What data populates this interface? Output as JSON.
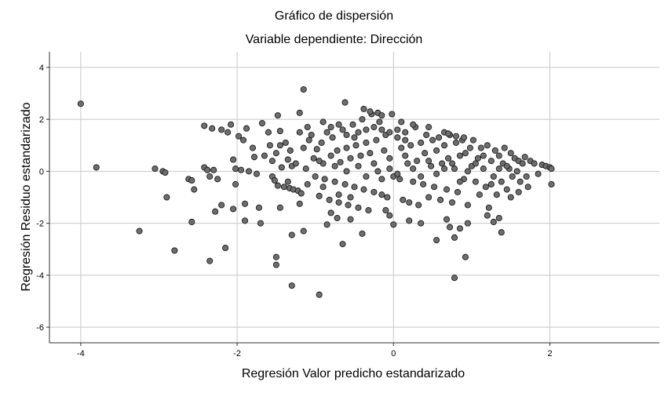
{
  "chart_data": {
    "type": "scatter",
    "title": "Gráfico de dispersión",
    "subtitle": "Variable dependiente: Dirección",
    "xlabel": "Regresión Valor predicho estandarizado",
    "ylabel": "Regresión Residuo estandarizado",
    "xlim": [
      -4.4,
      3.4
    ],
    "ylim": [
      -6.6,
      4.6
    ],
    "xticks": [
      -4,
      -2,
      0,
      2
    ],
    "yticks": [
      -6,
      -4,
      -2,
      0,
      2,
      4
    ],
    "xtick_labels": [
      "-4",
      "-2",
      "0",
      "2"
    ],
    "ytick_labels": [
      "-6",
      "-4",
      "-2",
      "0",
      "2",
      "4"
    ],
    "grid": true,
    "marker_fill": "#6e6e6e",
    "marker_edge": "#1a1a1a",
    "points": [
      [
        -4.0,
        2.6
      ],
      [
        -3.8,
        0.15
      ],
      [
        -3.25,
        -2.3
      ],
      [
        -3.05,
        0.1
      ],
      [
        -2.95,
        0.0
      ],
      [
        -2.92,
        -0.05
      ],
      [
        -2.9,
        -1.0
      ],
      [
        -2.8,
        -3.05
      ],
      [
        -2.62,
        -0.3
      ],
      [
        -2.58,
        -0.35
      ],
      [
        -2.58,
        -1.95
      ],
      [
        -2.55,
        -0.7
      ],
      [
        -2.42,
        1.75
      ],
      [
        -2.42,
        0.15
      ],
      [
        -2.38,
        0.05
      ],
      [
        -2.35,
        -0.2
      ],
      [
        -2.35,
        -3.45
      ],
      [
        -2.32,
        1.65
      ],
      [
        -2.3,
        0.05
      ],
      [
        -2.28,
        -1.55
      ],
      [
        -2.25,
        -0.3
      ],
      [
        -2.2,
        1.6
      ],
      [
        -2.2,
        -1.3
      ],
      [
        -2.15,
        -2.95
      ],
      [
        -2.12,
        1.5
      ],
      [
        -2.08,
        1.8
      ],
      [
        -2.05,
        0.45
      ],
      [
        -2.05,
        -1.45
      ],
      [
        -2.02,
        0.1
      ],
      [
        -2.02,
        -0.5
      ],
      [
        -1.98,
        1.35
      ],
      [
        -1.95,
        0.05
      ],
      [
        -1.92,
        1.2
      ],
      [
        -1.9,
        -1.25
      ],
      [
        -1.9,
        -1.9
      ],
      [
        -1.88,
        1.65
      ],
      [
        -1.85,
        0.0
      ],
      [
        -1.8,
        0.9
      ],
      [
        -1.78,
        0.55
      ],
      [
        -1.75,
        -0.1
      ],
      [
        -1.72,
        -1.4
      ],
      [
        -1.7,
        -2.0
      ],
      [
        -1.68,
        1.85
      ],
      [
        -1.65,
        0.6
      ],
      [
        -1.55,
        -0.2
      ],
      [
        -1.5,
        0.7
      ],
      [
        -1.48,
        -0.55
      ],
      [
        -1.45,
        1.0
      ],
      [
        -1.43,
        0.15
      ],
      [
        -1.4,
        -0.6
      ],
      [
        -1.38,
        1.1
      ],
      [
        -1.35,
        0.45
      ],
      [
        -1.33,
        -0.65
      ],
      [
        -1.3,
        0.2
      ],
      [
        -1.28,
        -0.7
      ],
      [
        -1.25,
        0.3
      ],
      [
        -1.22,
        -0.75
      ],
      [
        -1.2,
        1.5
      ],
      [
        -1.18,
        -0.85
      ],
      [
        -1.5,
        -3.3
      ],
      [
        -1.5,
        -3.6
      ],
      [
        -1.45,
        -1.4
      ],
      [
        -1.3,
        -2.45
      ],
      [
        -1.3,
        -4.4
      ],
      [
        -1.2,
        -1.25
      ],
      [
        -1.15,
        -2.3
      ],
      [
        -1.48,
        2.15
      ],
      [
        -1.45,
        1.55
      ],
      [
        -1.2,
        2.25
      ],
      [
        -1.15,
        3.15
      ],
      [
        -1.1,
        1.7
      ],
      [
        -1.05,
        1.4
      ],
      [
        -1.02,
        0.5
      ],
      [
        -1.0,
        -0.2
      ],
      [
        -0.98,
        0.85
      ],
      [
        -0.95,
        -0.95
      ],
      [
        -0.92,
        1.1
      ],
      [
        -0.9,
        0.3
      ],
      [
        -0.88,
        -0.3
      ],
      [
        -0.85,
        1.5
      ],
      [
        -0.82,
        -1.1
      ],
      [
        -0.8,
        0.6
      ],
      [
        -0.78,
        1.3
      ],
      [
        -0.75,
        -0.4
      ],
      [
        -0.72,
        0.8
      ],
      [
        -0.7,
        -1.2
      ],
      [
        -0.68,
        0.35
      ],
      [
        -0.65,
        1.6
      ],
      [
        -0.62,
        -0.5
      ],
      [
        -0.6,
        0.9
      ],
      [
        -0.58,
        -1.3
      ],
      [
        -0.55,
        0.5
      ],
      [
        -0.52,
        1.8
      ],
      [
        -0.5,
        -0.6
      ],
      [
        -0.48,
        1.0
      ],
      [
        -0.45,
        -1.4
      ],
      [
        -0.42,
        0.6
      ],
      [
        -0.4,
        2.0
      ],
      [
        -0.38,
        -0.7
      ],
      [
        -0.35,
        1.1
      ],
      [
        -0.32,
        -1.5
      ],
      [
        -0.3,
        0.7
      ],
      [
        -0.28,
        2.2
      ],
      [
        -0.25,
        -0.8
      ],
      [
        -0.22,
        1.2
      ],
      [
        -0.2,
        0.0
      ],
      [
        -0.18,
        1.9
      ],
      [
        -0.15,
        -0.9
      ],
      [
        -0.12,
        0.8
      ],
      [
        -0.1,
        1.4
      ],
      [
        -0.08,
        -1.0
      ],
      [
        -0.05,
        0.5
      ],
      [
        -0.02,
        2.2
      ],
      [
        0.0,
        -0.2
      ],
      [
        -0.95,
        -4.75
      ],
      [
        -0.85,
        -2.05
      ],
      [
        -0.8,
        -1.6
      ],
      [
        -0.72,
        -1.8
      ],
      [
        -0.65,
        -2.8
      ],
      [
        -0.62,
        2.65
      ],
      [
        -0.55,
        -1.85
      ],
      [
        -0.4,
        -2.4
      ],
      [
        -0.38,
        2.4
      ],
      [
        -0.3,
        2.3
      ],
      [
        -0.2,
        2.25
      ],
      [
        -0.15,
        2.15
      ],
      [
        -0.1,
        -1.5
      ],
      [
        -0.05,
        -1.7
      ],
      [
        0.0,
        -2.05
      ],
      [
        0.05,
        1.6
      ],
      [
        0.08,
        -0.3
      ],
      [
        0.1,
        0.9
      ],
      [
        0.12,
        -1.1
      ],
      [
        0.15,
        1.5
      ],
      [
        0.18,
        0.3
      ],
      [
        0.2,
        -1.2
      ],
      [
        0.22,
        1.0
      ],
      [
        0.25,
        -0.4
      ],
      [
        0.28,
        1.7
      ],
      [
        0.3,
        0.4
      ],
      [
        0.32,
        -1.3
      ],
      [
        0.35,
        1.1
      ],
      [
        0.38,
        -0.5
      ],
      [
        0.4,
        0.7
      ],
      [
        0.42,
        1.4
      ],
      [
        0.45,
        -1.0
      ],
      [
        0.48,
        0.2
      ],
      [
        0.5,
        1.2
      ],
      [
        0.52,
        -0.6
      ],
      [
        0.55,
        0.8
      ],
      [
        0.58,
        1.3
      ],
      [
        0.6,
        -1.1
      ],
      [
        0.62,
        0.3
      ],
      [
        0.65,
        1.0
      ],
      [
        0.68,
        -0.7
      ],
      [
        0.7,
        0.5
      ],
      [
        0.72,
        1.4
      ],
      [
        0.75,
        -1.2
      ],
      [
        0.78,
        0.1
      ],
      [
        0.8,
        1.1
      ],
      [
        0.82,
        -0.8
      ],
      [
        0.85,
        0.6
      ],
      [
        0.88,
        1.2
      ],
      [
        0.9,
        -0.3
      ],
      [
        0.92,
        0.7
      ],
      [
        0.95,
        -1.3
      ],
      [
        0.98,
        0.9
      ],
      [
        1.0,
        0.2
      ],
      [
        0.2,
        -1.9
      ],
      [
        0.35,
        -2.0
      ],
      [
        0.55,
        -2.65
      ],
      [
        0.68,
        -1.85
      ],
      [
        0.72,
        -2.15
      ],
      [
        0.78,
        -4.1
      ],
      [
        0.78,
        -2.55
      ],
      [
        0.85,
        -2.2
      ],
      [
        0.92,
        -3.3
      ],
      [
        0.95,
        -2.0
      ],
      [
        0.1,
        1.9
      ],
      [
        0.25,
        1.8
      ],
      [
        0.45,
        1.7
      ],
      [
        0.65,
        1.5
      ],
      [
        0.7,
        1.45
      ],
      [
        0.8,
        1.35
      ],
      [
        0.9,
        1.3
      ],
      [
        1.02,
        1.2
      ],
      [
        1.05,
        -0.4
      ],
      [
        1.08,
        0.5
      ],
      [
        1.1,
        -0.9
      ],
      [
        1.12,
        0.9
      ],
      [
        1.15,
        0.1
      ],
      [
        1.18,
        -0.6
      ],
      [
        1.2,
        1.0
      ],
      [
        1.22,
        -1.4
      ],
      [
        1.25,
        0.4
      ],
      [
        1.28,
        -0.2
      ],
      [
        1.3,
        0.8
      ],
      [
        1.32,
        -0.9
      ],
      [
        1.35,
        0.6
      ],
      [
        1.38,
        -0.4
      ],
      [
        1.4,
        0.3
      ],
      [
        1.42,
        0.9
      ],
      [
        1.45,
        -0.7
      ],
      [
        1.48,
        0.1
      ],
      [
        1.5,
        0.7
      ],
      [
        1.52,
        -0.2
      ],
      [
        1.55,
        0.5
      ],
      [
        1.58,
        0.0
      ],
      [
        1.6,
        0.4
      ],
      [
        1.62,
        -0.4
      ],
      [
        1.65,
        0.3
      ],
      [
        1.68,
        0.55
      ],
      [
        1.7,
        -0.2
      ],
      [
        1.75,
        0.4
      ],
      [
        1.8,
        0.3
      ],
      [
        1.85,
        -0.1
      ],
      [
        1.9,
        0.25
      ],
      [
        1.95,
        0.2
      ],
      [
        2.0,
        0.15
      ],
      [
        2.02,
        0.1
      ],
      [
        2.02,
        -0.5
      ],
      [
        1.2,
        -1.7
      ],
      [
        1.28,
        -1.95
      ],
      [
        1.35,
        -1.8
      ],
      [
        1.38,
        -2.35
      ],
      [
        1.5,
        -1.0
      ],
      [
        1.6,
        -0.8
      ],
      [
        1.72,
        -0.6
      ],
      [
        -1.6,
        1.5
      ],
      [
        -1.58,
        1.0
      ],
      [
        -1.55,
        0.4
      ],
      [
        -1.52,
        -0.35
      ],
      [
        -1.35,
        -0.4
      ],
      [
        -1.32,
        0.8
      ],
      [
        -1.15,
        0.9
      ],
      [
        -1.12,
        0.1
      ],
      [
        -1.1,
        -0.5
      ],
      [
        -1.08,
        1.2
      ],
      [
        -0.95,
        0.4
      ],
      [
        -0.9,
        -0.6
      ],
      [
        -0.75,
        0.2
      ],
      [
        -0.7,
        -0.9
      ],
      [
        -0.6,
        0.0
      ],
      [
        -0.55,
        -1.0
      ],
      [
        -0.45,
        0.2
      ],
      [
        -0.35,
        -0.2
      ],
      [
        -0.25,
        0.3
      ],
      [
        -0.15,
        -0.3
      ],
      [
        -0.05,
        0.1
      ],
      [
        0.05,
        -0.1
      ],
      [
        0.15,
        0.6
      ],
      [
        0.25,
        0.1
      ],
      [
        0.35,
        -0.2
      ],
      [
        0.45,
        0.4
      ],
      [
        0.55,
        -0.1
      ],
      [
        0.65,
        0.1
      ],
      [
        0.75,
        0.3
      ],
      [
        0.85,
        -0.4
      ],
      [
        0.95,
        0.0
      ],
      [
        1.05,
        0.3
      ],
      [
        1.15,
        0.6
      ],
      [
        1.25,
        -0.5
      ],
      [
        1.35,
        0.1
      ],
      [
        1.45,
        0.2
      ],
      [
        -0.9,
        1.9
      ],
      [
        -0.8,
        1.7
      ],
      [
        -0.7,
        1.8
      ],
      [
        -0.6,
        1.4
      ],
      [
        -0.5,
        1.3
      ],
      [
        -0.45,
        1.5
      ],
      [
        -0.35,
        1.6
      ],
      [
        -0.25,
        1.7
      ],
      [
        -0.15,
        1.6
      ],
      [
        -0.05,
        1.5
      ],
      [
        0.05,
        1.3
      ],
      [
        0.15,
        1.2
      ]
    ]
  }
}
